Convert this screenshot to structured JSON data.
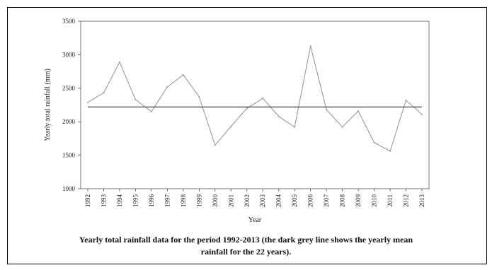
{
  "chart_data": {
    "type": "line",
    "title": "",
    "xlabel": "Year",
    "ylabel": "Yearly total rainfall (mm)",
    "ylim": [
      1000,
      3500
    ],
    "yticks": [
      1000,
      1500,
      2000,
      2500,
      3000,
      3500
    ],
    "grid": false,
    "legend": "none",
    "categories": [
      "1992",
      "1993",
      "1994",
      "1995",
      "1996",
      "1997",
      "1998",
      "1999",
      "2000",
      "2001",
      "2002",
      "2003",
      "2004",
      "2005",
      "2006",
      "2007",
      "2008",
      "2009",
      "2010",
      "2011",
      "2012",
      "2013"
    ],
    "series": [
      {
        "values": [
          2290,
          2430,
          2890,
          2330,
          2150,
          2520,
          2700,
          2370,
          1650,
          1930,
          2200,
          2350,
          2080,
          1920,
          3130,
          2180,
          1920,
          2160,
          1690,
          1560,
          2320,
          2110
        ],
        "color": "#9a9a9a"
      },
      {
        "values": [
          2220,
          2220,
          2220,
          2220,
          2220,
          2220,
          2220,
          2220,
          2220,
          2220,
          2220,
          2220,
          2220,
          2220,
          2220,
          2220,
          2220,
          2220,
          2220,
          2220,
          2220,
          2220
        ],
        "color": "#444444"
      }
    ]
  },
  "caption": {
    "line1": "Yearly total rainfall data for the period 1992-2013 (the dark grey line shows the yearly mean",
    "line2": "rainfall for the 22 years)."
  }
}
